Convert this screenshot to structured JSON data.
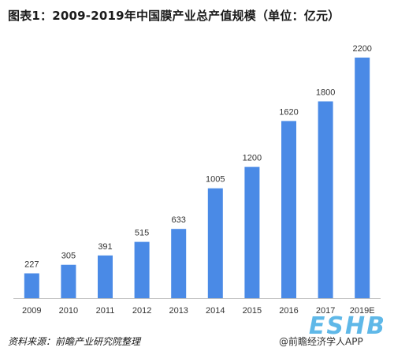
{
  "title": "图表1：2009-2019年中国膜产业总产值规模（单位：亿元）",
  "source": "资料来源：前瞻产业研究院整理",
  "credit": "@前瞻经济学人APP",
  "credit_logo": "ESHB",
  "colors": {
    "bar": "#4a8ae6",
    "axis": "#bfbfbf",
    "text": "#333333"
  },
  "chart_data": {
    "type": "bar",
    "title": "图表1：2009-2019年中国膜产业总产值规模（单位：亿元）",
    "xlabel": "",
    "ylabel": "",
    "categories": [
      "2009",
      "2010",
      "2011",
      "2012",
      "2013",
      "2014",
      "2015",
      "2016",
      "2017",
      "2019E"
    ],
    "values": [
      227,
      305,
      391,
      515,
      633,
      1005,
      1200,
      1620,
      1800,
      2200
    ],
    "data_labels": [
      "227",
      "305",
      "391",
      "515",
      "633",
      "1005",
      "1200",
      "1620",
      "1800",
      "2200"
    ],
    "ylim": [
      0,
      2200
    ],
    "grid": false,
    "legend": "none"
  }
}
